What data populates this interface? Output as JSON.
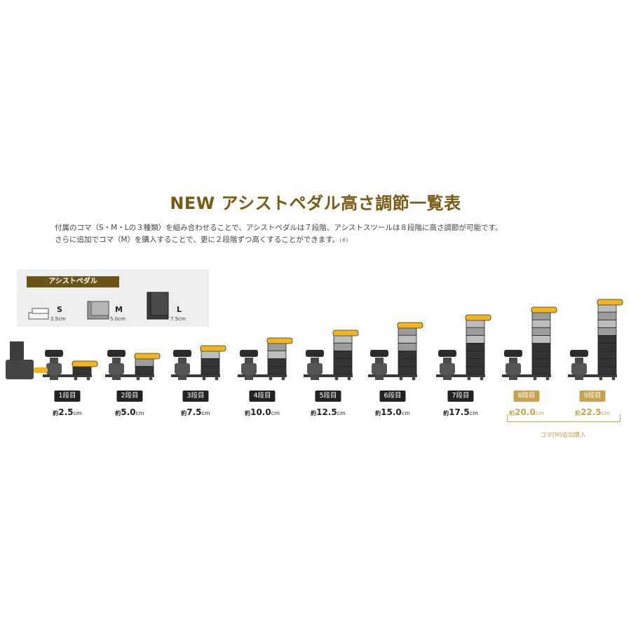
{
  "title": "NEW アシストペダル高さ調節一覧表",
  "description": {
    "line1": "付属のコマ（S・M・Lの３種類）を組み合わせることで、アシストペダルは７段階、アシストスツールは８段階に高さ調節が可能です。",
    "line2": "さらに追加でコマ（M）を購入することで、更に２段階ずつ高くすることができます。",
    "note": "(※)"
  },
  "legend": {
    "tag": "アシストペダル",
    "items": [
      {
        "letter": "S",
        "size": "2.5cm"
      },
      {
        "letter": "M",
        "size": "5.0cm"
      },
      {
        "letter": "L",
        "size": "7.5cm"
      }
    ]
  },
  "stages": [
    {
      "label": "1段目",
      "prefix": "約",
      "value": "2.5",
      "unit": "cm",
      "highlight": false
    },
    {
      "label": "2段目",
      "prefix": "約",
      "value": "5.0",
      "unit": "cm",
      "highlight": false
    },
    {
      "label": "3段目",
      "prefix": "約",
      "value": "7.5",
      "unit": "cm",
      "highlight": false
    },
    {
      "label": "4段目",
      "prefix": "約",
      "value": "10.0",
      "unit": "cm",
      "highlight": false
    },
    {
      "label": "5段目",
      "prefix": "約",
      "value": "12.5",
      "unit": "cm",
      "highlight": false
    },
    {
      "label": "6段目",
      "prefix": "約",
      "value": "15.0",
      "unit": "cm",
      "highlight": false
    },
    {
      "label": "7段目",
      "prefix": "約",
      "value": "17.5",
      "unit": "cm",
      "highlight": false
    },
    {
      "label": "8段目",
      "prefix": "約",
      "value": "20.0",
      "unit": "cm",
      "highlight": true
    },
    {
      "label": "9段目",
      "prefix": "約",
      "value": "22.5",
      "unit": "cm",
      "highlight": true
    }
  ],
  "extra_purchase_label": "コマ(M)追加購入",
  "colors": {
    "title": "#7a5a12",
    "legend_tag": "#6b5416",
    "highlight": "#c9a24b",
    "pedal_yellow": "#f2b61c",
    "dark_block": "#2c2c2c"
  }
}
